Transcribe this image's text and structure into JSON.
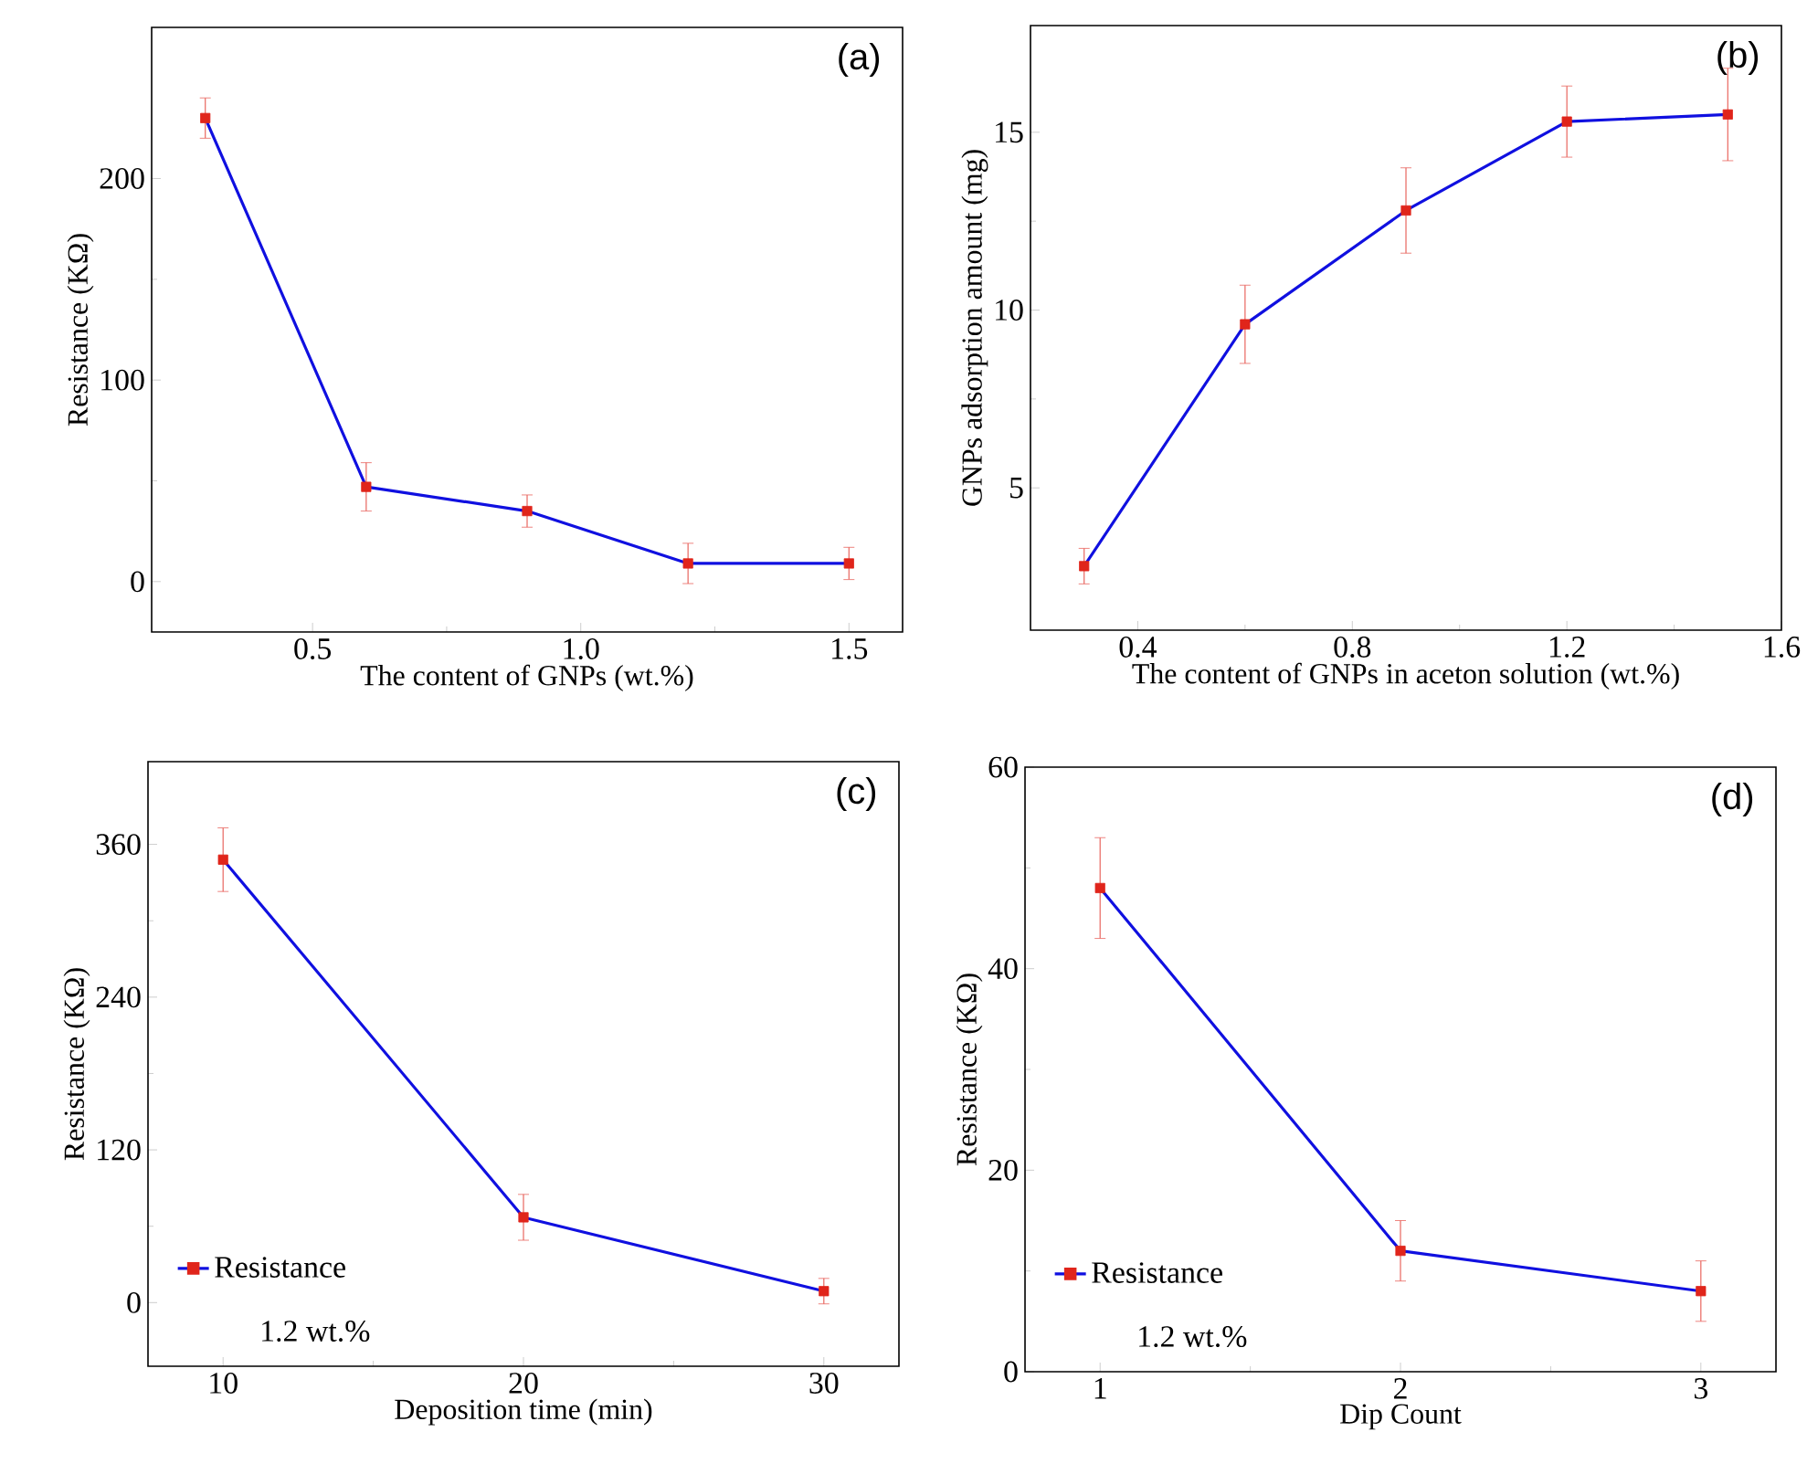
{
  "chart_data": [
    {
      "type": "line",
      "title": "(a)",
      "xlabel": "The content of GNPs (wt.%)",
      "ylabel": "Resistance (KΩ)",
      "x": [
        0.3,
        0.6,
        0.9,
        1.2,
        1.5
      ],
      "series": [
        {
          "color": "#1010e0",
          "colors": [
            "#e0251b",
            "#e0251b",
            "#e0251b",
            "#e0251b",
            "#e0251b"
          ],
          "values": [
            230,
            47,
            35,
            9,
            9
          ],
          "errors": [
            10,
            12,
            8,
            10,
            8
          ]
        }
      ],
      "xlim": [
        0.2,
        1.6
      ],
      "ylim": [
        -25,
        275
      ],
      "xticks": [
        0.5,
        {
          "value": 1.0,
          "label": "1.0"
        },
        1.5
      ],
      "yticks": [
        0,
        100,
        200
      ],
      "marker": "square",
      "line_style": "solid"
    },
    {
      "type": "line",
      "title": "(b)",
      "xlabel": "The content of GNPs in aceton solution (wt.%)",
      "ylabel": "GNPs adsorption amount (mg)",
      "x": [
        0.3,
        0.6,
        0.9,
        1.2,
        1.5
      ],
      "series": [
        {
          "color": "#1010e0",
          "colors": [
            "#e0251b",
            "#e0251b",
            "#e0251b",
            "#e0251b",
            "#e0251b"
          ],
          "values": [
            2.8,
            9.6,
            12.8,
            15.3,
            15.5
          ],
          "errors": [
            0.5,
            1.1,
            1.2,
            1.0,
            1.3
          ]
        }
      ],
      "xlim": [
        0.2,
        1.6
      ],
      "ylim": [
        1,
        18
      ],
      "xticks": [
        0.4,
        0.8,
        1.2,
        1.6
      ],
      "yticks": [
        5,
        10,
        15
      ],
      "marker": "square",
      "line_style": "solid"
    },
    {
      "type": "line",
      "title": "(c)",
      "xlabel": "Deposition time (min)",
      "ylabel": "Resistance (KΩ)",
      "x": [
        10,
        20,
        30
      ],
      "series": [
        {
          "name": "Resistance",
          "color": "#1010e0",
          "colors": [
            "#e0251b",
            "#e0251b",
            "#e0251b"
          ],
          "values": [
            348,
            67,
            9
          ],
          "errors": [
            25,
            18,
            10
          ]
        }
      ],
      "xlim": [
        7.5,
        32.5
      ],
      "ylim": [
        -50,
        425
      ],
      "xticks": [
        10,
        20,
        30
      ],
      "yticks": [
        0,
        120,
        240,
        360
      ],
      "marker": "square",
      "line_style": "solid",
      "legend": "bottom left",
      "annotations": [
        "1.2 wt.%"
      ]
    },
    {
      "type": "line",
      "title": "(d)",
      "xlabel": "Dip Count",
      "ylabel": "Resistance (KΩ)",
      "x": [
        1,
        2,
        3
      ],
      "series": [
        {
          "name": "Resistance",
          "color": "#1010e0",
          "colors": [
            "#e0251b",
            "#e0251b",
            "#e0251b"
          ],
          "values": [
            48,
            12,
            8
          ],
          "errors": [
            5,
            3,
            3
          ]
        }
      ],
      "xlim": [
        0.75,
        3.25
      ],
      "ylim": [
        0,
        60
      ],
      "xticks": [
        1,
        2,
        3
      ],
      "yticks": [
        0,
        20,
        40,
        60
      ],
      "marker": "square",
      "line_style": "solid",
      "legend": "bottom left",
      "annotations": [
        "1.2 wt.%"
      ]
    }
  ]
}
